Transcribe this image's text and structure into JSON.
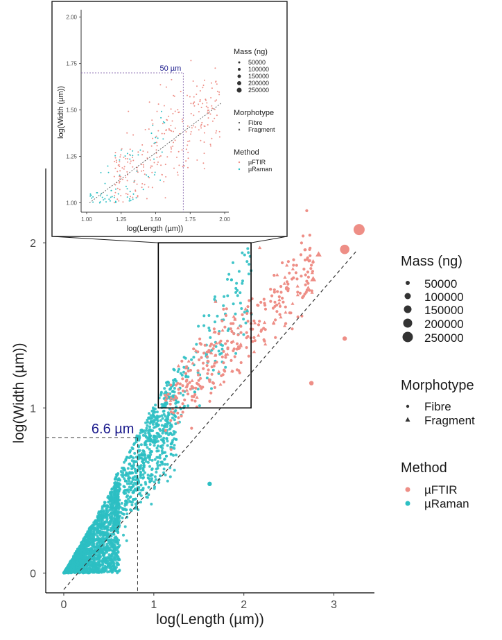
{
  "chart_data": [
    {
      "id": "main",
      "type": "scatter",
      "title": "",
      "xlabel": "log(Length (µm))",
      "ylabel": "log(Width (µm))",
      "xlim": [
        -0.2,
        3.45
      ],
      "ylim": [
        -0.12,
        2.45
      ],
      "xticks": [
        {
          "v": 0,
          "label": "0"
        },
        {
          "v": 1,
          "label": "1"
        },
        {
          "v": 2,
          "label": "2"
        },
        {
          "v": 3,
          "label": "3"
        }
      ],
      "yticks": [
        {
          "v": 0,
          "label": "0"
        },
        {
          "v": 1,
          "label": "1"
        },
        {
          "v": 2,
          "label": "2"
        }
      ],
      "grid": false,
      "trend_line": {
        "x": [
          0,
          3.25
        ],
        "y": [
          -0.1,
          1.95
        ]
      },
      "reference": {
        "x": 0.82,
        "y": 0.82,
        "label": "6.6 µm"
      },
      "zoom_box": {
        "x": [
          1.05,
          2.08
        ],
        "y": [
          1.0,
          2.0
        ]
      },
      "series": [
        {
          "name": "µRaman",
          "color": "#2CBFC3",
          "dense_region": true
        },
        {
          "name": "µFTIR",
          "color": "#EE8E86"
        }
      ],
      "highlight_points": [
        {
          "x": 3.28,
          "y": 2.08,
          "mass": 250000,
          "method": "µFTIR",
          "shape": "circle"
        },
        {
          "x": 3.12,
          "y": 1.96,
          "mass": 200000,
          "method": "µFTIR",
          "shape": "circle"
        },
        {
          "x": 2.77,
          "y": 1.78,
          "mass": 100000,
          "method": "µFTIR",
          "shape": "triangle"
        },
        {
          "x": 2.83,
          "y": 1.93,
          "mass": 100000,
          "method": "µFTIR",
          "shape": "triangle"
        },
        {
          "x": 3.12,
          "y": 1.42,
          "mass": 50000,
          "method": "µFTIR",
          "shape": "circle"
        },
        {
          "x": 2.75,
          "y": 1.15,
          "mass": 50000,
          "method": "µFTIR",
          "shape": "circle"
        },
        {
          "x": 1.62,
          "y": 0.54,
          "mass": 50000,
          "method": "µRaman",
          "shape": "circle"
        }
      ]
    },
    {
      "id": "inset",
      "type": "scatter",
      "title": "",
      "xlabel": "log(Length (µm))",
      "ylabel": "log(Width (µm))",
      "xlim": [
        0.96,
        2.03
      ],
      "ylim": [
        0.95,
        2.04
      ],
      "xticks": [
        {
          "v": 1.0,
          "label": "1.00"
        },
        {
          "v": 1.25,
          "label": "1.25"
        },
        {
          "v": 1.5,
          "label": "1.50"
        },
        {
          "v": 1.75,
          "label": "1.75"
        },
        {
          "v": 2.0,
          "label": "2.00"
        }
      ],
      "yticks": [
        {
          "v": 1.0,
          "label": "1.00"
        },
        {
          "v": 1.25,
          "label": "1.25"
        },
        {
          "v": 1.5,
          "label": "1.50"
        },
        {
          "v": 1.75,
          "label": "1.75"
        },
        {
          "v": 2.0,
          "label": "2.00"
        }
      ],
      "grid": false,
      "trend_line": {
        "x": [
          1.02,
          1.98
        ],
        "y": [
          1.0,
          1.54
        ]
      },
      "reference": {
        "x": 1.7,
        "y": 1.7,
        "label": "50 µm"
      }
    }
  ],
  "legend": {
    "mass": {
      "title": "Mass (ng)",
      "items": [
        "50000",
        "100000",
        "150000",
        "200000",
        "250000"
      ]
    },
    "morphotype": {
      "title": "Morphotype",
      "items": [
        "Fibre",
        "Fragment"
      ]
    },
    "method": {
      "title": "Method",
      "items": [
        "µFTIR",
        "µRaman"
      ]
    }
  },
  "colors": {
    "uftir": "#EE8E86",
    "uraman": "#2CBFC3",
    "reference": "#1a1a8c"
  }
}
